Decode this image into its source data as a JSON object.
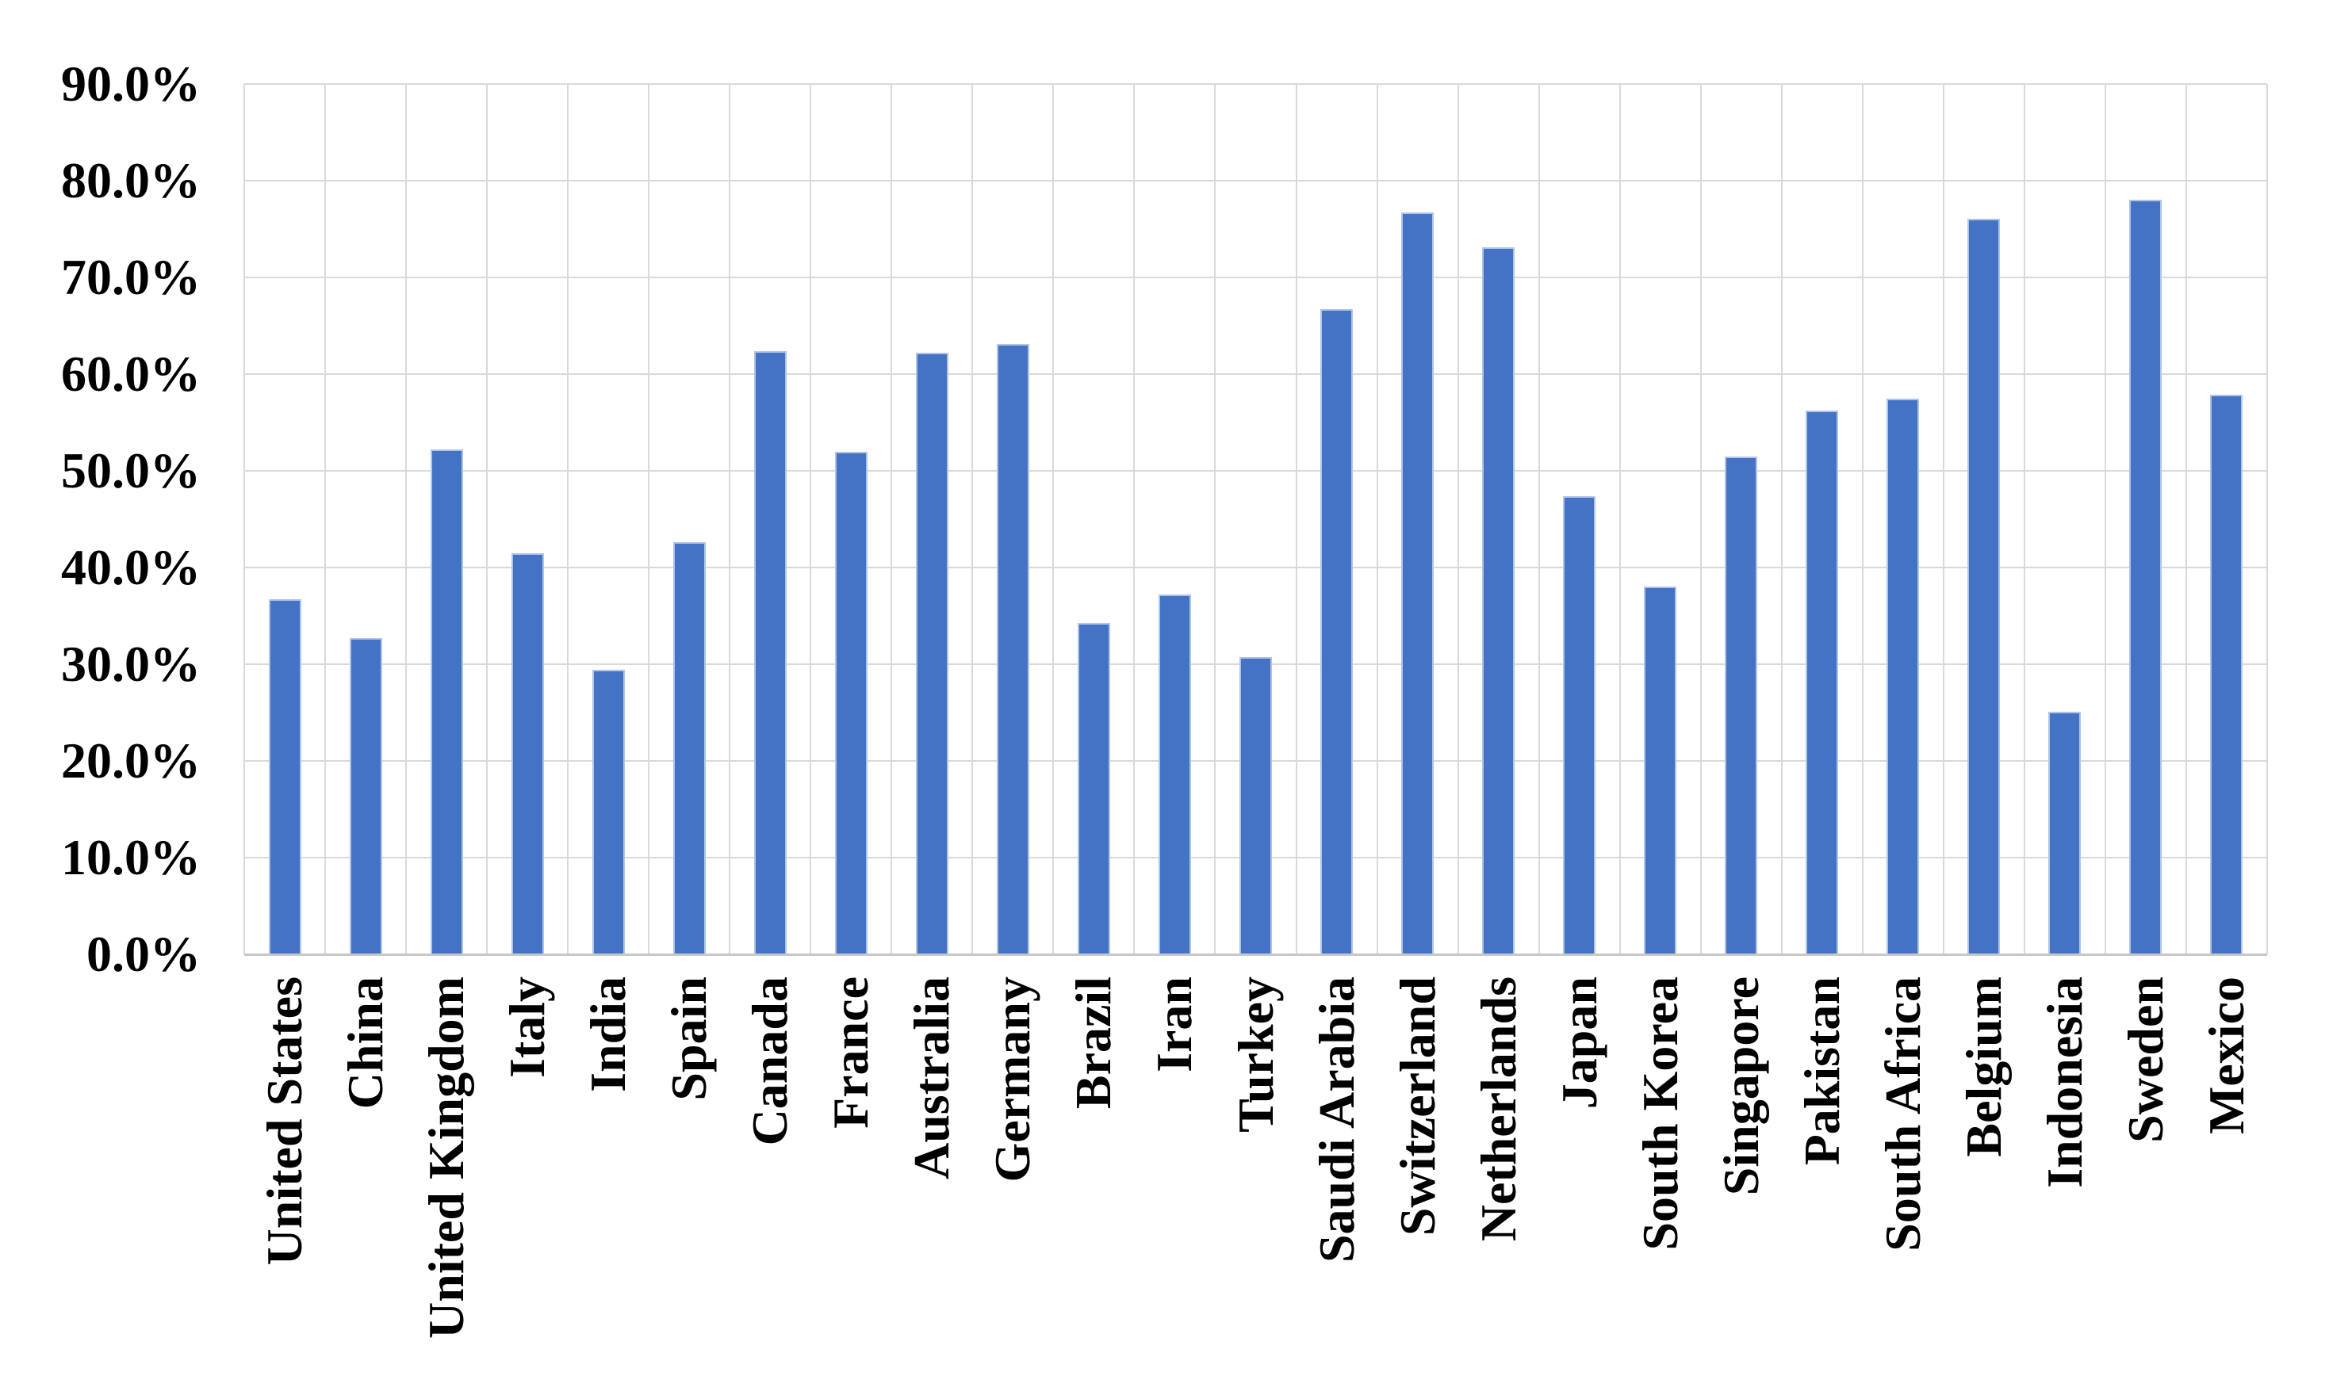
{
  "chart_data": {
    "type": "bar",
    "title": "",
    "xlabel": "",
    "ylabel": "",
    "categories": [
      "United States",
      "China",
      "United Kingdom",
      "Italy",
      "India",
      "Spain",
      "Canada",
      "France",
      "Australia",
      "Germany",
      "Brazil",
      "Iran",
      "Turkey",
      "Saudi Arabia",
      "Switzerland",
      "Netherlands",
      "Japan",
      "South Korea",
      "Singapore",
      "Pakistan",
      "South Africa",
      "Belgium",
      "Indonesia",
      "Sweden",
      "Mexico"
    ],
    "values": [
      36.7,
      32.7,
      52.2,
      41.5,
      29.4,
      42.6,
      62.4,
      52.0,
      62.2,
      63.1,
      34.3,
      37.2,
      30.7,
      66.7,
      76.7,
      73.1,
      47.4,
      38.0,
      51.5,
      56.2,
      57.5,
      76.1,
      25.1,
      78.0,
      57.9
    ],
    "value_unit": "%",
    "ylim": [
      0,
      90
    ],
    "ytick_step": 10,
    "ytick_labels": [
      "0.0%",
      "10.0%",
      "20.0%",
      "30.0%",
      "40.0%",
      "50.0%",
      "60.0%",
      "70.0%",
      "80.0%",
      "90.0%"
    ],
    "grid": true,
    "legend": "none",
    "colors": {
      "bar_fill": "#4472C4",
      "bar_border": "#AEC5E8",
      "gridline": "#D9D9D9",
      "axis_line": "#C9C7C7",
      "text": "#000000",
      "background": "#FFFFFF"
    }
  }
}
